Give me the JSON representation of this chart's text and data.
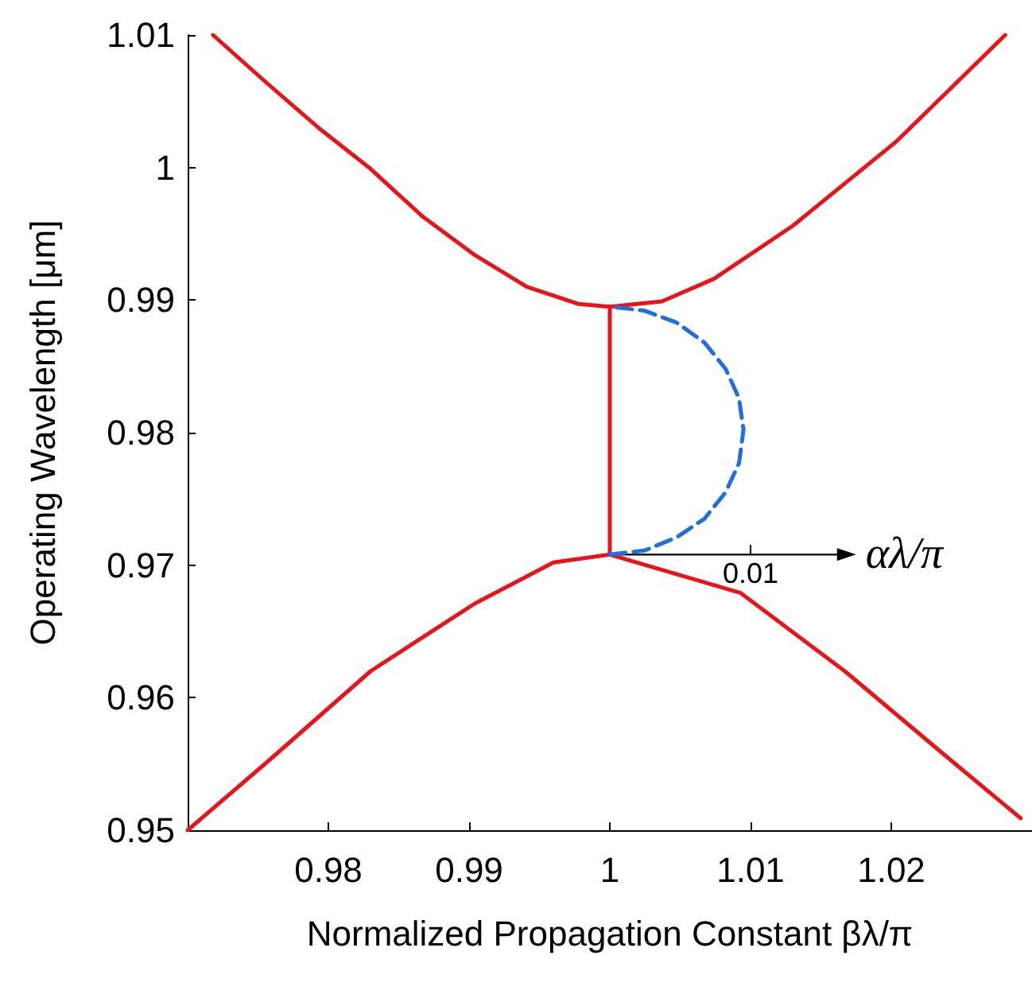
{
  "chart_data": {
    "type": "line",
    "xlabel": "Normalized Propagation Constant βλ/π",
    "ylabel": "Operating Wavelength [μm]",
    "xlim": [
      0.97,
      1.03
    ],
    "xticks": [
      0.98,
      0.99,
      1,
      1.01,
      1.02
    ],
    "ylim": [
      0.95,
      1.01
    ],
    "yticks": [
      0.95,
      0.96,
      0.97,
      0.98,
      0.99,
      1,
      1.01
    ],
    "grid": false,
    "marker": "none",
    "series": [
      {
        "color": "#e8141a",
        "line_style": "solid",
        "x": [
          0.9718,
          0.9756,
          0.9793,
          0.983,
          0.9867,
          0.9904,
          0.9941,
          0.9978,
          1,
          1.0037,
          1.0074,
          1.013,
          1.0204,
          1.0281
        ],
        "values": [
          1.01,
          1.0064,
          1.003,
          0.9999,
          0.9963,
          0.9934,
          0.991,
          0.9897,
          0.9895,
          0.9899,
          0.9916,
          0.9956,
          1.002,
          1.01
        ]
      },
      {
        "color": "#e8141a",
        "line_style": "solid",
        "x": [
          0.97,
          0.9756,
          0.983,
          0.9904,
          0.996,
          1,
          1.0093,
          1.0167,
          1.0241,
          1.0292
        ],
        "values": [
          0.95,
          0.9551,
          0.962,
          0.9671,
          0.9702,
          0.9708,
          0.9679,
          0.962,
          0.9554,
          0.9509
        ]
      },
      {
        "color": "#e8141a",
        "line_style": "solid",
        "x": [
          1,
          1
        ],
        "values": [
          0.9708,
          0.9895
        ]
      },
      {
        "color": "#1f6fe0",
        "line_style": "dashed",
        "x": [
          1,
          1.00246,
          1.00475,
          1.00672,
          1.00823,
          1.00918,
          1.0095,
          1.00918,
          1.00823,
          1.00672,
          1.00475,
          1.00246,
          1
        ],
        "values": [
          0.9708,
          0.9711,
          0.9721,
          0.9735,
          0.9755,
          0.9777,
          0.9802,
          0.9826,
          0.9848,
          0.9868,
          0.9883,
          0.9892,
          0.9895
        ]
      }
    ],
    "annotations": [
      "0.01",
      "αλ/π"
    ]
  }
}
